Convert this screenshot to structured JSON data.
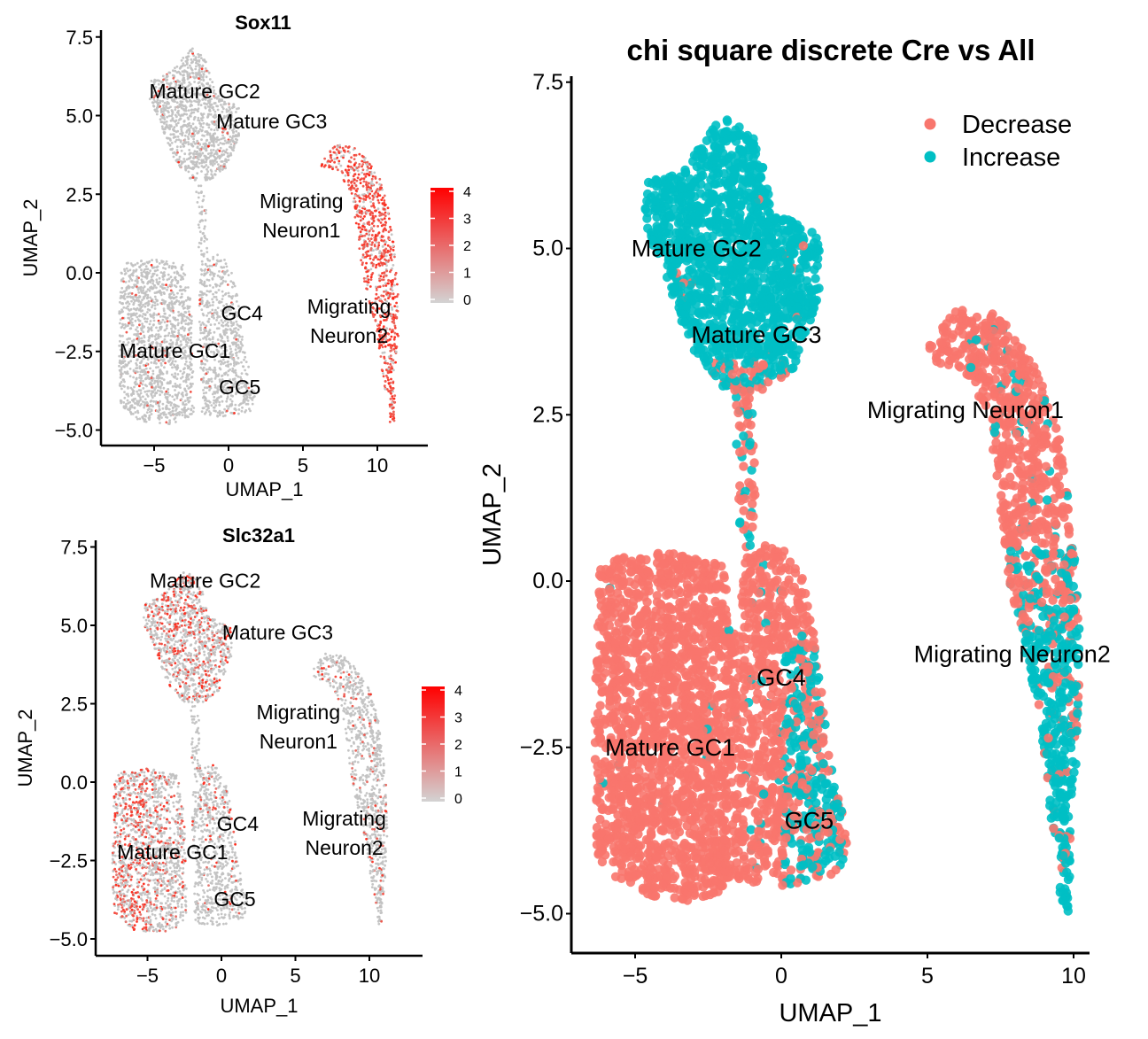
{
  "chart_data": [
    {
      "type": "scatter",
      "title": "Sox11",
      "xlabel": "UMAP_1",
      "ylabel": "UMAP_2",
      "xticks": [
        "−5",
        "0",
        "5",
        "10"
      ],
      "yticks": [
        "−5.0",
        "−2.5",
        "0.0",
        "2.5",
        "5.0",
        "7.5"
      ],
      "xtick_values": [
        -5,
        0,
        5,
        10
      ],
      "ytick_values": [
        -5,
        -2.5,
        0,
        2.5,
        5,
        7.5
      ],
      "color_scale": {
        "type": "continuous",
        "low": "#D3D3D3",
        "high": "#FF0000",
        "range": [
          0,
          4
        ],
        "ticks": [
          "0",
          "1",
          "2",
          "3",
          "4"
        ]
      },
      "high_expression_clusters": [
        "Migrating Neuron1",
        "Migrating Neuron2"
      ],
      "labels": [
        {
          "lines": [
            "Mature GC2"
          ],
          "x": -1.6,
          "y": 5.8
        },
        {
          "lines": [
            "Mature GC3"
          ],
          "x": 2.9,
          "y": 4.85
        },
        {
          "lines": [
            "Migrating",
            "Neuron1"
          ],
          "x": 4.9,
          "y": 1.85
        },
        {
          "lines": [
            "GC4"
          ],
          "x": 0.9,
          "y": -1.25
        },
        {
          "lines": [
            "Migrating",
            "Neuron2"
          ],
          "x": 8.1,
          "y": -1.5
        },
        {
          "lines": [
            "Mature GC1"
          ],
          "x": -3.6,
          "y": -2.45
        },
        {
          "lines": [
            "GC5"
          ],
          "x": 0.75,
          "y": -3.6
        }
      ]
    },
    {
      "type": "scatter",
      "title": "Slc32a1",
      "xlabel": "UMAP_1",
      "ylabel": "UMAP_2",
      "xticks": [
        "−5",
        "0",
        "5",
        "10"
      ],
      "yticks": [
        "−5.0",
        "−2.5",
        "0.0",
        "2.5",
        "5.0",
        "7.5"
      ],
      "xtick_values": [
        -5,
        0,
        5,
        10
      ],
      "ytick_values": [
        -5,
        -2.5,
        0,
        2.5,
        5,
        7.5
      ],
      "color_scale": {
        "type": "continuous",
        "low": "#D3D3D3",
        "high": "#FF0000",
        "range": [
          0,
          4
        ],
        "ticks": [
          "0",
          "1",
          "2",
          "3",
          "4"
        ]
      },
      "high_expression_clusters": [
        "Mature GC1",
        "Mature GC2"
      ],
      "labels": [
        {
          "lines": [
            "Mature GC2"
          ],
          "x": -1.1,
          "y": 6.45
        },
        {
          "lines": [
            "Mature GC3"
          ],
          "x": 3.8,
          "y": 4.8
        },
        {
          "lines": [
            "Migrating",
            "Neuron1"
          ],
          "x": 5.2,
          "y": 1.8
        },
        {
          "lines": [
            "GC4"
          ],
          "x": 1.1,
          "y": -1.3
        },
        {
          "lines": [
            "Mature GC1"
          ],
          "x": -3.3,
          "y": -2.2
        },
        {
          "lines": [
            "Migrating",
            "Neuron2"
          ],
          "x": 8.3,
          "y": -1.6
        },
        {
          "lines": [
            "GC5"
          ],
          "x": 0.9,
          "y": -3.7
        }
      ]
    },
    {
      "type": "scatter",
      "title": "chi square discrete Cre vs All",
      "xlabel": "UMAP_1",
      "ylabel": "UMAP_2",
      "xticks": [
        "−5",
        "0",
        "5",
        "10"
      ],
      "yticks": [
        "−5.0",
        "−2.5",
        "0.0",
        "2.5",
        "5.0",
        "7.5"
      ],
      "xtick_values": [
        -5,
        0,
        5,
        10
      ],
      "ytick_values": [
        -5,
        -2.5,
        0,
        2.5,
        5,
        7.5
      ],
      "legend_position": "top-right",
      "series": [
        {
          "name": "Decrease",
          "color": "#F8766D"
        },
        {
          "name": "Increase",
          "color": "#00BFC4"
        }
      ],
      "labels": [
        {
          "lines": [
            "Mature GC2"
          ],
          "x": -2.9,
          "y": 5.0
        },
        {
          "lines": [
            "Mature GC3"
          ],
          "x": -0.85,
          "y": 3.7
        },
        {
          "lines": [
            "Migrating Neuron1"
          ],
          "x": 6.3,
          "y": 2.57
        },
        {
          "lines": [
            "Migrating Neuron2"
          ],
          "x": 7.9,
          "y": -1.1
        },
        {
          "lines": [
            "GC4"
          ],
          "x": 0.0,
          "y": -1.45
        },
        {
          "lines": [
            "Mature GC1"
          ],
          "x": -3.8,
          "y": -2.5
        },
        {
          "lines": [
            "GC5"
          ],
          "x": 0.95,
          "y": -3.6
        }
      ]
    }
  ]
}
